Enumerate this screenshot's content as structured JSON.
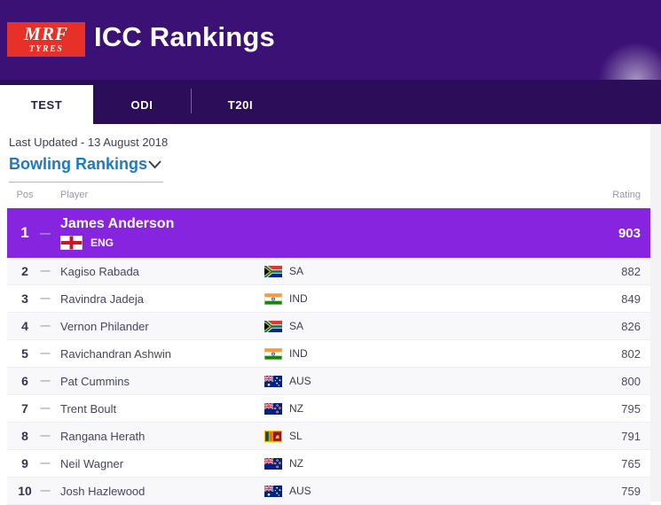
{
  "header": {
    "logo": {
      "line1": "MRF",
      "line2": "TYRES"
    },
    "title": "ICC Rankings"
  },
  "tabs": [
    {
      "label": "TEST",
      "active": true
    },
    {
      "label": "ODI",
      "active": false
    },
    {
      "label": "T20I",
      "active": false
    }
  ],
  "filters": {
    "last_updated": "Last Updated - 13 August 2018",
    "dropdown_value": "Bowling Rankings"
  },
  "table": {
    "columns": {
      "pos": "Pos",
      "player": "Player",
      "rating": "Rating"
    },
    "rows": [
      {
        "pos": "1",
        "movement": "—",
        "player": "James Anderson",
        "country": "ENG",
        "rating": "903",
        "featured": true
      },
      {
        "pos": "2",
        "movement": "—",
        "player": "Kagiso Rabada",
        "country": "SA",
        "rating": "882"
      },
      {
        "pos": "3",
        "movement": "—",
        "player": "Ravindra Jadeja",
        "country": "IND",
        "rating": "849"
      },
      {
        "pos": "4",
        "movement": "—",
        "player": "Vernon Philander",
        "country": "SA",
        "rating": "826"
      },
      {
        "pos": "5",
        "movement": "—",
        "player": "Ravichandran Ashwin",
        "country": "IND",
        "rating": "802"
      },
      {
        "pos": "6",
        "movement": "—",
        "player": "Pat Cummins",
        "country": "AUS",
        "rating": "800"
      },
      {
        "pos": "7",
        "movement": "—",
        "player": "Trent Boult",
        "country": "NZ",
        "rating": "795"
      },
      {
        "pos": "8",
        "movement": "—",
        "player": "Rangana Herath",
        "country": "SL",
        "rating": "791"
      },
      {
        "pos": "9",
        "movement": "—",
        "player": "Neil Wagner",
        "country": "NZ",
        "rating": "765"
      },
      {
        "pos": "10",
        "movement": "—",
        "player": "Josh Hazlewood",
        "country": "AUS",
        "rating": "759"
      }
    ]
  },
  "colors": {
    "header_purple": "#3b1176",
    "tabbar_purple": "#2c0d59",
    "featured_row_purple": "#8624e0",
    "dropdown_link_blue": "#1e79c0",
    "logo_red": "#e73128",
    "row_shade": "#f8f8fb"
  }
}
